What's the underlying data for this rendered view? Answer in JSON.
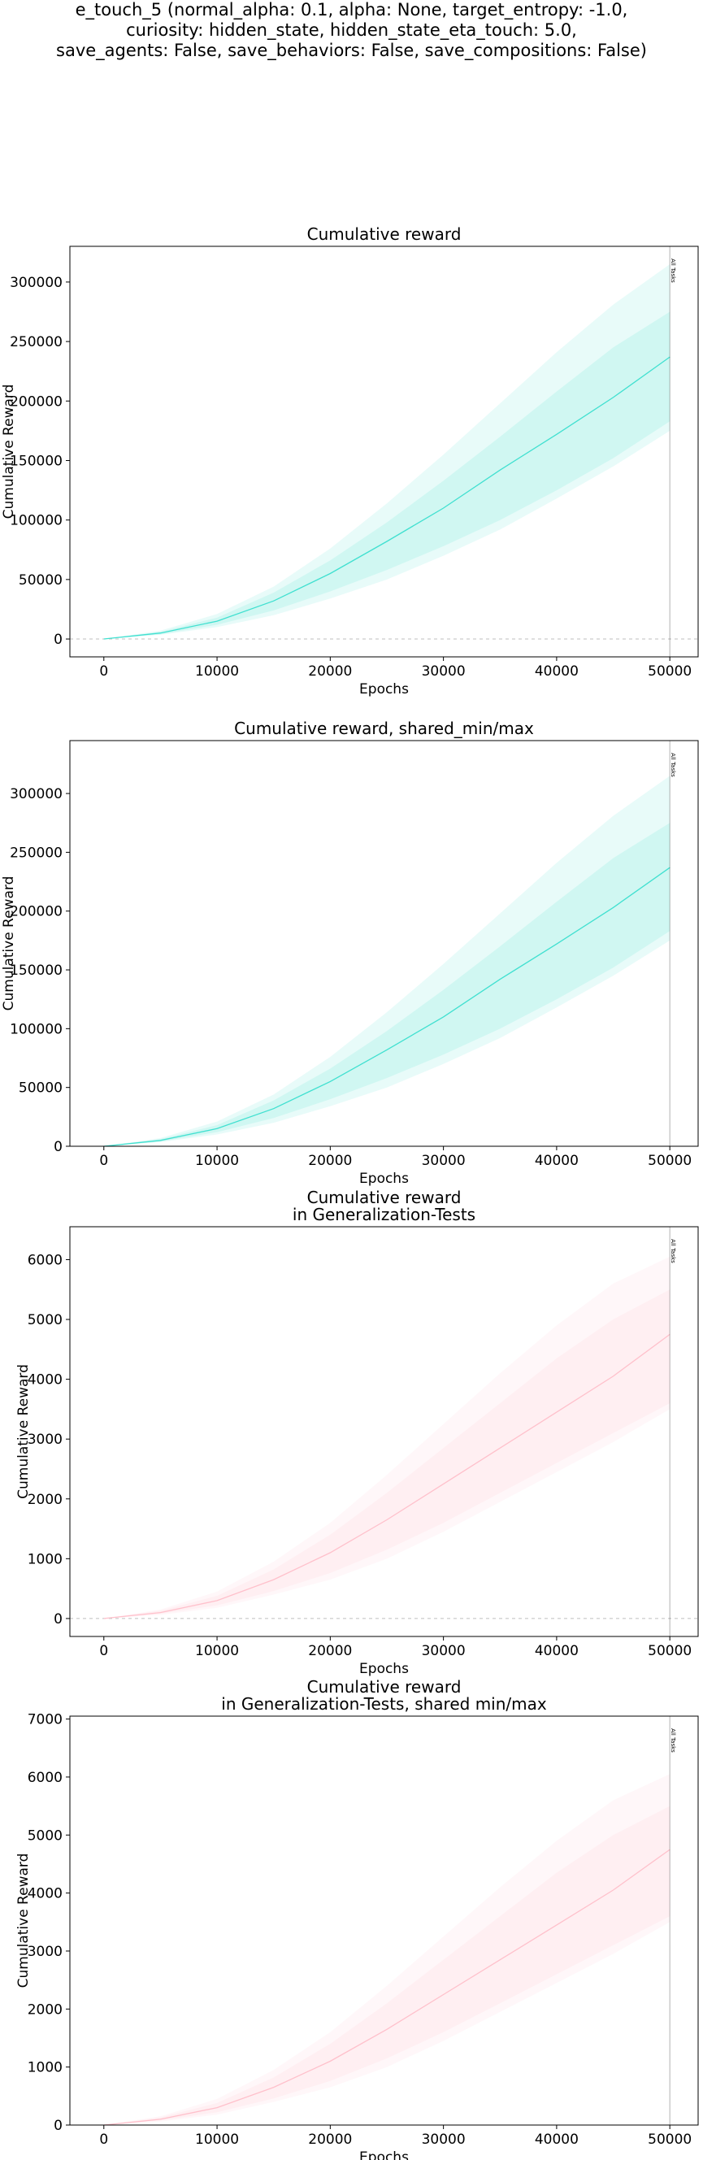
{
  "figure": {
    "title_lines": [
      "e_touch_5 (normal_alpha: 0.1, alpha: None, target_entropy: -1.0,",
      "curiosity: hidden_state, hidden_state_eta_touch: 5.0,",
      "save_agents: False, save_behaviors: False, save_compositions: False)"
    ]
  },
  "chart_data": [
    {
      "type": "line",
      "title": "Cumulative reward",
      "xlabel": "Epochs",
      "ylabel": "Cumulative Reward",
      "xlim": [
        -3000,
        52500
      ],
      "ylim": [
        -15000,
        330000
      ],
      "xticks": [
        0,
        10000,
        20000,
        30000,
        40000,
        50000
      ],
      "yticks": [
        0,
        50000,
        100000,
        150000,
        200000,
        250000,
        300000
      ],
      "zero_line": true,
      "grid": false,
      "color": "#40E0D0",
      "vline": {
        "x": 50000,
        "label": "All Tasks"
      },
      "x": [
        0,
        5000,
        10000,
        15000,
        20000,
        25000,
        30000,
        35000,
        40000,
        45000,
        50000
      ],
      "series": [
        {
          "values": [
            0,
            5000,
            15000,
            32000,
            55000,
            82000,
            110000,
            142000,
            172000,
            203000,
            237000
          ]
        }
      ],
      "band_inner": {
        "lower": [
          0,
          4000,
          12000,
          24000,
          40000,
          58000,
          78000,
          100000,
          125000,
          152000,
          183000
        ],
        "upper": [
          0,
          6000,
          18000,
          39000,
          66000,
          98000,
          133000,
          170000,
          208000,
          245000,
          275000
        ]
      },
      "band_outer": {
        "lower": [
          0,
          3500,
          10000,
          20000,
          34000,
          50000,
          70000,
          92000,
          118000,
          145000,
          175000
        ],
        "upper": [
          0,
          7000,
          21000,
          44000,
          76000,
          114000,
          155000,
          198000,
          241000,
          281000,
          315000
        ]
      }
    },
    {
      "type": "line",
      "title": "Cumulative reward, shared_min/max",
      "xlabel": "Epochs",
      "ylabel": "Cumulative Reward",
      "xlim": [
        -3000,
        52500
      ],
      "ylim": [
        0,
        345000
      ],
      "xticks": [
        0,
        10000,
        20000,
        30000,
        40000,
        50000
      ],
      "yticks": [
        0,
        50000,
        100000,
        150000,
        200000,
        250000,
        300000
      ],
      "zero_line": false,
      "grid": false,
      "color": "#40E0D0",
      "vline": {
        "x": 50000,
        "label": "All Tasks"
      },
      "x": [
        0,
        5000,
        10000,
        15000,
        20000,
        25000,
        30000,
        35000,
        40000,
        45000,
        50000
      ],
      "series": [
        {
          "values": [
            0,
            5000,
            15000,
            32000,
            55000,
            82000,
            110000,
            142000,
            172000,
            203000,
            237000
          ]
        }
      ],
      "band_inner": {
        "lower": [
          0,
          4000,
          12000,
          24000,
          40000,
          58000,
          78000,
          100000,
          125000,
          152000,
          183000
        ],
        "upper": [
          0,
          6000,
          18000,
          39000,
          66000,
          98000,
          133000,
          170000,
          208000,
          245000,
          275000
        ]
      },
      "band_outer": {
        "lower": [
          0,
          3500,
          10000,
          20000,
          34000,
          50000,
          70000,
          92000,
          118000,
          145000,
          175000
        ],
        "upper": [
          0,
          7000,
          21000,
          44000,
          76000,
          114000,
          155000,
          198000,
          241000,
          281000,
          315000
        ]
      }
    },
    {
      "type": "line",
      "title": "Cumulative reward\nin Generalization-Tests",
      "xlabel": "Epochs",
      "ylabel": "Cumulative Reward",
      "xlim": [
        -3000,
        52500
      ],
      "ylim": [
        -300,
        6550
      ],
      "xticks": [
        0,
        10000,
        20000,
        30000,
        40000,
        50000
      ],
      "yticks": [
        0,
        1000,
        2000,
        3000,
        4000,
        5000,
        6000
      ],
      "zero_line": true,
      "grid": false,
      "color": "#FFC0CB",
      "vline": {
        "x": 50000,
        "label": "All Tasks"
      },
      "x": [
        0,
        5000,
        10000,
        15000,
        20000,
        25000,
        30000,
        35000,
        40000,
        45000,
        50000
      ],
      "series": [
        {
          "values": [
            0,
            100,
            300,
            650,
            1100,
            1650,
            2250,
            2850,
            3450,
            4050,
            4750
          ]
        }
      ],
      "band_inner": {
        "lower": [
          0,
          80,
          220,
          460,
          760,
          1150,
          1600,
          2100,
          2600,
          3100,
          3600
        ],
        "upper": [
          0,
          130,
          380,
          820,
          1400,
          2100,
          2850,
          3600,
          4350,
          5000,
          5500
        ]
      },
      "band_outer": {
        "lower": [
          0,
          60,
          180,
          400,
          650,
          1000,
          1450,
          1950,
          2450,
          2950,
          3500
        ],
        "upper": [
          0,
          150,
          450,
          950,
          1600,
          2400,
          3250,
          4100,
          4900,
          5600,
          6050
        ]
      }
    },
    {
      "type": "line",
      "title": "Cumulative reward\nin Generalization-Tests, shared min/max",
      "xlabel": "Epochs",
      "ylabel": "Cumulative Reward",
      "xlim": [
        -3000,
        52500
      ],
      "ylim": [
        0,
        7050
      ],
      "xticks": [
        0,
        10000,
        20000,
        30000,
        40000,
        50000
      ],
      "yticks": [
        0,
        1000,
        2000,
        3000,
        4000,
        5000,
        6000,
        7000
      ],
      "zero_line": false,
      "grid": false,
      "color": "#FFC0CB",
      "vline": {
        "x": 50000,
        "label": "All Tasks"
      },
      "x": [
        0,
        5000,
        10000,
        15000,
        20000,
        25000,
        30000,
        35000,
        40000,
        45000,
        50000
      ],
      "series": [
        {
          "values": [
            0,
            100,
            300,
            650,
            1100,
            1650,
            2250,
            2850,
            3450,
            4050,
            4750
          ]
        }
      ],
      "band_inner": {
        "lower": [
          0,
          80,
          220,
          460,
          760,
          1150,
          1600,
          2100,
          2600,
          3100,
          3600
        ],
        "upper": [
          0,
          130,
          380,
          820,
          1400,
          2100,
          2850,
          3600,
          4350,
          5000,
          5500
        ]
      },
      "band_outer": {
        "lower": [
          0,
          60,
          180,
          400,
          650,
          1000,
          1450,
          1950,
          2450,
          2950,
          3500
        ],
        "upper": [
          0,
          150,
          450,
          950,
          1600,
          2400,
          3250,
          4100,
          4900,
          5600,
          6050
        ]
      }
    }
  ]
}
